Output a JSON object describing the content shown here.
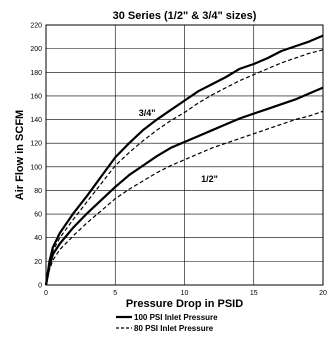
{
  "chart_data": {
    "type": "line",
    "title": "30 Series (1/2\" & 3/4\" sizes)",
    "xlabel": "Pressure Drop in PSID",
    "ylabel": "Air Flow in SCFM",
    "xlim": [
      0,
      20
    ],
    "ylim": [
      0,
      220
    ],
    "xticks": [
      0,
      5,
      10,
      15,
      20
    ],
    "yticks": [
      0,
      20,
      40,
      60,
      80,
      100,
      120,
      140,
      160,
      180,
      200,
      220
    ],
    "grid": true,
    "legend_position": "bottom-center",
    "series": [
      {
        "name": "100 PSI Inlet Pressure",
        "group": "3/4\"",
        "style": "solid",
        "x": [
          0,
          0.25,
          0.5,
          1,
          2,
          3,
          4,
          5,
          6,
          7,
          8,
          9,
          10,
          11,
          12,
          13,
          14,
          15,
          16,
          17,
          18,
          19,
          20
        ],
        "y": [
          0,
          20,
          32,
          44,
          61,
          76,
          92,
          108,
          120,
          131,
          140,
          148,
          156,
          164,
          170,
          176,
          183,
          187,
          192,
          198,
          202,
          206,
          211
        ]
      },
      {
        "name": "80 PSI Inlet Pressure",
        "group": "3/4\"",
        "style": "dashed",
        "x": [
          0,
          0.25,
          0.5,
          1,
          2,
          3,
          4,
          5,
          6,
          7,
          8,
          9,
          10,
          11,
          12,
          13,
          14,
          15,
          16,
          17,
          18,
          19,
          20
        ],
        "y": [
          0,
          18,
          29,
          40,
          56,
          71,
          86,
          101,
          112,
          122,
          131,
          139,
          146,
          154,
          161,
          167,
          173,
          178,
          183,
          188,
          192,
          196,
          199
        ]
      },
      {
        "name": "100 PSI Inlet Pressure",
        "group": "1/2\"",
        "style": "solid",
        "x": [
          0,
          0.25,
          0.5,
          1,
          2,
          3,
          4,
          5,
          6,
          7,
          8,
          9,
          10,
          11,
          12,
          13,
          14,
          15,
          16,
          17,
          18,
          19,
          20
        ],
        "y": [
          0,
          16,
          26,
          35,
          49,
          61,
          72,
          83,
          93,
          101,
          109,
          116,
          121,
          126,
          131,
          136,
          141,
          145,
          149,
          153,
          157,
          162,
          167
        ]
      },
      {
        "name": "80 PSI Inlet Pressure",
        "group": "1/2\"",
        "style": "dashed",
        "x": [
          0,
          0.25,
          0.5,
          1,
          2,
          3,
          4,
          5,
          6,
          7,
          8,
          9,
          10,
          11,
          12,
          13,
          14,
          15,
          16,
          17,
          18,
          19,
          20
        ],
        "y": [
          0,
          13,
          21,
          30,
          42,
          53,
          63,
          73,
          81,
          88,
          95,
          101,
          106,
          111,
          116,
          120,
          124,
          128,
          132,
          136,
          140,
          143,
          147
        ]
      }
    ],
    "annotations": [
      {
        "text": "3/4\"",
        "x": 6.7,
        "y": 143
      },
      {
        "text": "1/2\"",
        "x": 11.2,
        "y": 87
      }
    ],
    "legend": [
      {
        "label": "100 PSI Inlet Pressure",
        "style": "solid"
      },
      {
        "label": "80 PSI Inlet Pressure",
        "style": "dashed"
      }
    ]
  }
}
